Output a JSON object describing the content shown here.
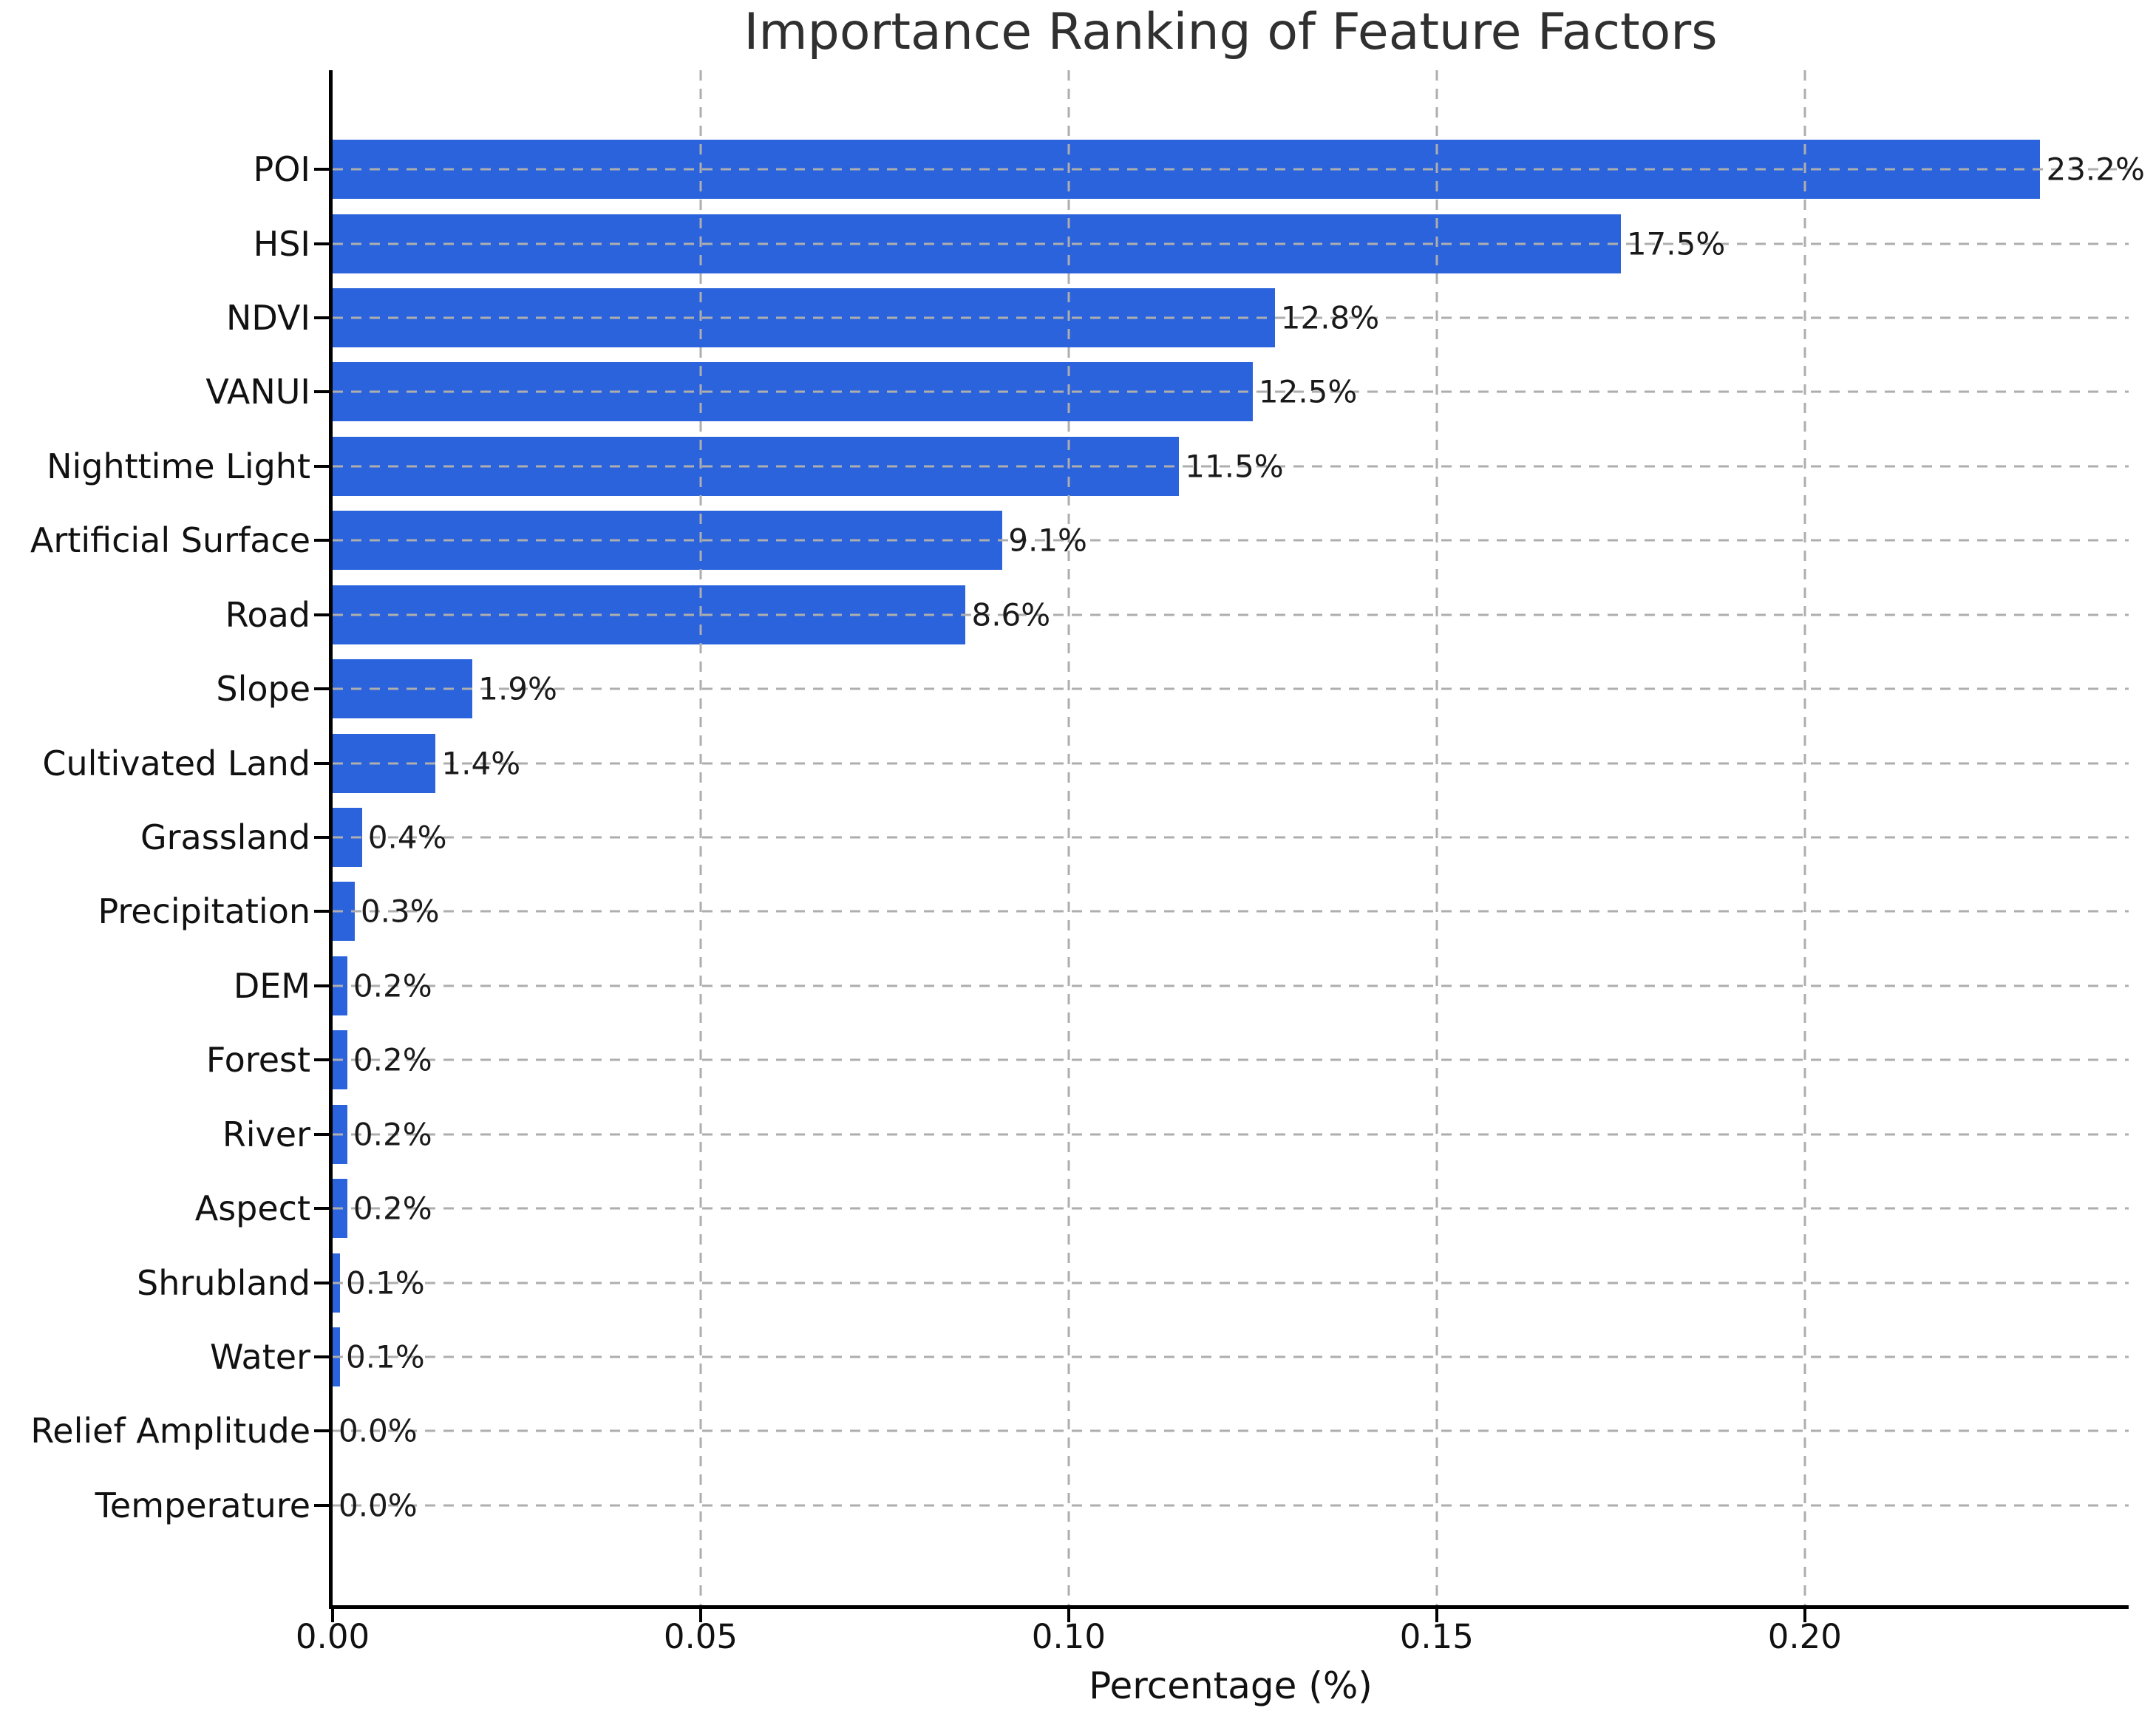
{
  "title": "Importance Ranking of Feature Factors",
  "colors": {
    "bar": "#2B63DC",
    "grid": "#AEAEAE",
    "axis": "#000000",
    "title_text": "#303030",
    "label_text": "#1A1A1A"
  },
  "chart_data": {
    "type": "bar",
    "orientation": "horizontal",
    "title": "Importance Ranking of Feature Factors",
    "xlabel": "Percentage (%)",
    "ylabel": "",
    "grid": true,
    "legend": false,
    "xlim": [
      0,
      0.244
    ],
    "xticks": [
      "0.00",
      "0.05",
      "0.10",
      "0.15",
      "0.20"
    ],
    "xtick_values": [
      0.0,
      0.05,
      0.1,
      0.15,
      0.2
    ],
    "categories": [
      "POI",
      "HSI",
      "NDVI",
      "VANUI",
      "Nighttime Light",
      "Artificial Surface",
      "Road",
      "Slope",
      "Cultivated Land",
      "Grassland",
      "Precipitation",
      "DEM",
      "Forest",
      "River",
      "Aspect",
      "Shrubland",
      "Water",
      "Relief Amplitude",
      "Temperature"
    ],
    "values": [
      0.232,
      0.175,
      0.128,
      0.125,
      0.115,
      0.091,
      0.086,
      0.019,
      0.014,
      0.004,
      0.003,
      0.002,
      0.002,
      0.002,
      0.002,
      0.001,
      0.001,
      0.0,
      0.0
    ],
    "value_labels": [
      "23.2%",
      "17.5%",
      "12.8%",
      "12.5%",
      "11.5%",
      "9.1%",
      "8.6%",
      "1.9%",
      "1.4%",
      "0.4%",
      "0.3%",
      "0.2%",
      "0.2%",
      "0.2%",
      "0.2%",
      "0.1%",
      "0.1%",
      "0.0%",
      "0.0%"
    ]
  }
}
